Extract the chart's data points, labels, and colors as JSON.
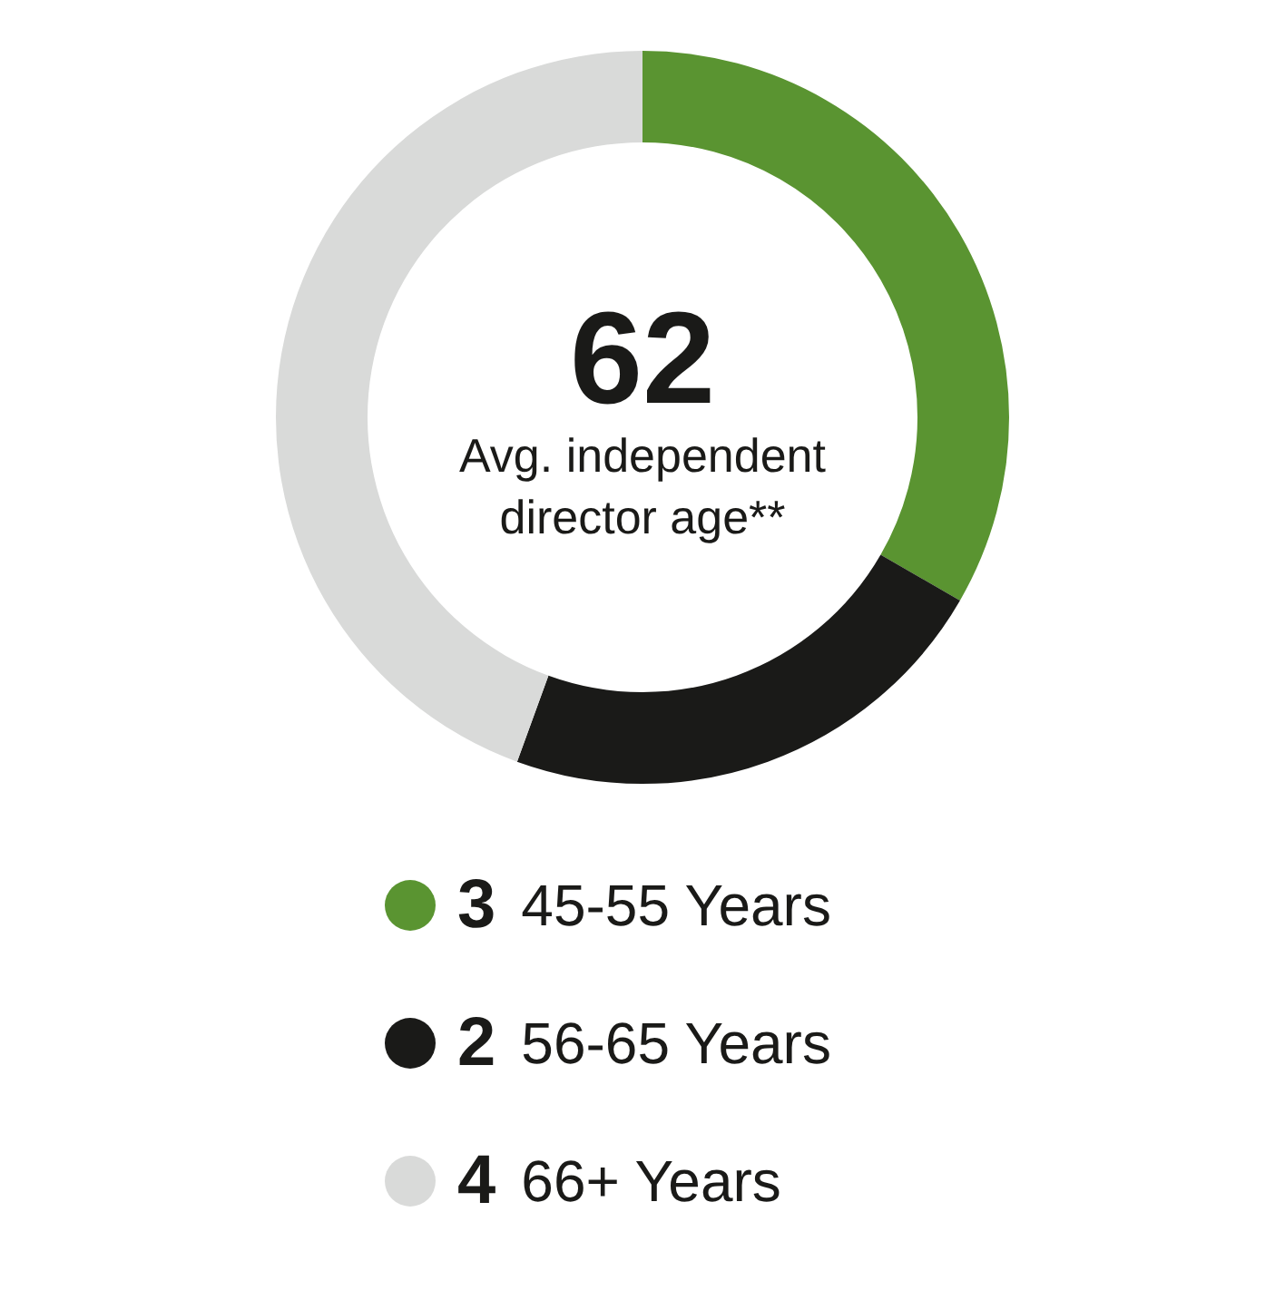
{
  "chart_data": {
    "type": "donut",
    "categories": [
      "45-55 Years",
      "56-65 Years",
      "66+ Years"
    ],
    "values": [
      3,
      2,
      4
    ],
    "colors": [
      "#5a9431",
      "#1a1a18",
      "#d9dad9"
    ],
    "annotations": [
      "62",
      "Avg. independent director age**"
    ],
    "data_labels": true,
    "legend": "bottom"
  }
}
